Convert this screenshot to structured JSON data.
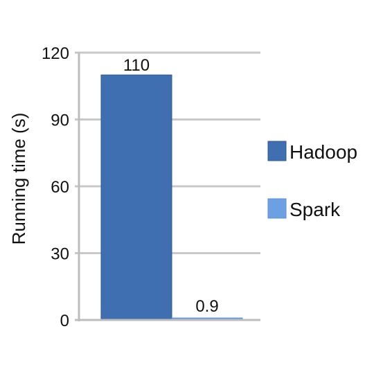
{
  "chart_data": {
    "type": "bar",
    "title": "",
    "xlabel": "",
    "ylabel": "Running time (s)",
    "ylim": [
      0,
      120
    ],
    "yticks": [
      0,
      30,
      60,
      90,
      120
    ],
    "grid": true,
    "legend_position": "right",
    "series": [
      {
        "name": "Hadoop",
        "values": [
          110
        ],
        "data_label": "110",
        "color": "#3f6fb0",
        "edge_color": "#2f5a96"
      },
      {
        "name": "Spark",
        "values": [
          0.9
        ],
        "data_label": "0.9",
        "color": "#6d9fe3",
        "edge_color": "#5a8fd6"
      }
    ],
    "colors": {
      "grid": "#c8c8c8",
      "axis": "#bdbdbd"
    }
  }
}
